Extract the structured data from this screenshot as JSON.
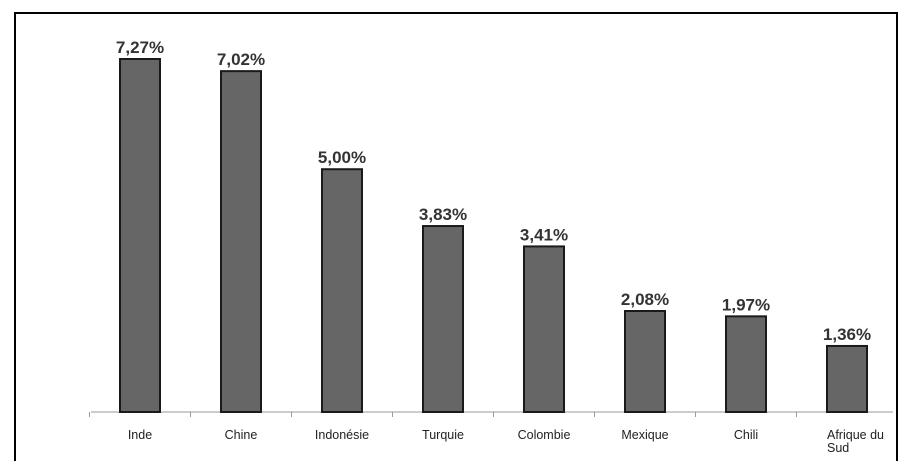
{
  "chart_data": {
    "type": "bar",
    "categories": [
      "Inde",
      "Chine",
      "Indonésie",
      "Turquie",
      "Colombie",
      "Mexique",
      "Chili",
      "Afrique du Sud"
    ],
    "values": [
      7.27,
      7.02,
      5.0,
      3.83,
      3.41,
      2.08,
      1.97,
      1.36
    ],
    "value_labels": [
      "7,27%",
      "7,02%",
      "5,00%",
      "3,83%",
      "3,41%",
      "2,08%",
      "1,97%",
      "1,36%"
    ],
    "title": "",
    "xlabel": "",
    "ylabel": "",
    "ylim": [
      0,
      7.27
    ],
    "grid": false,
    "bar_color": "#666666"
  }
}
